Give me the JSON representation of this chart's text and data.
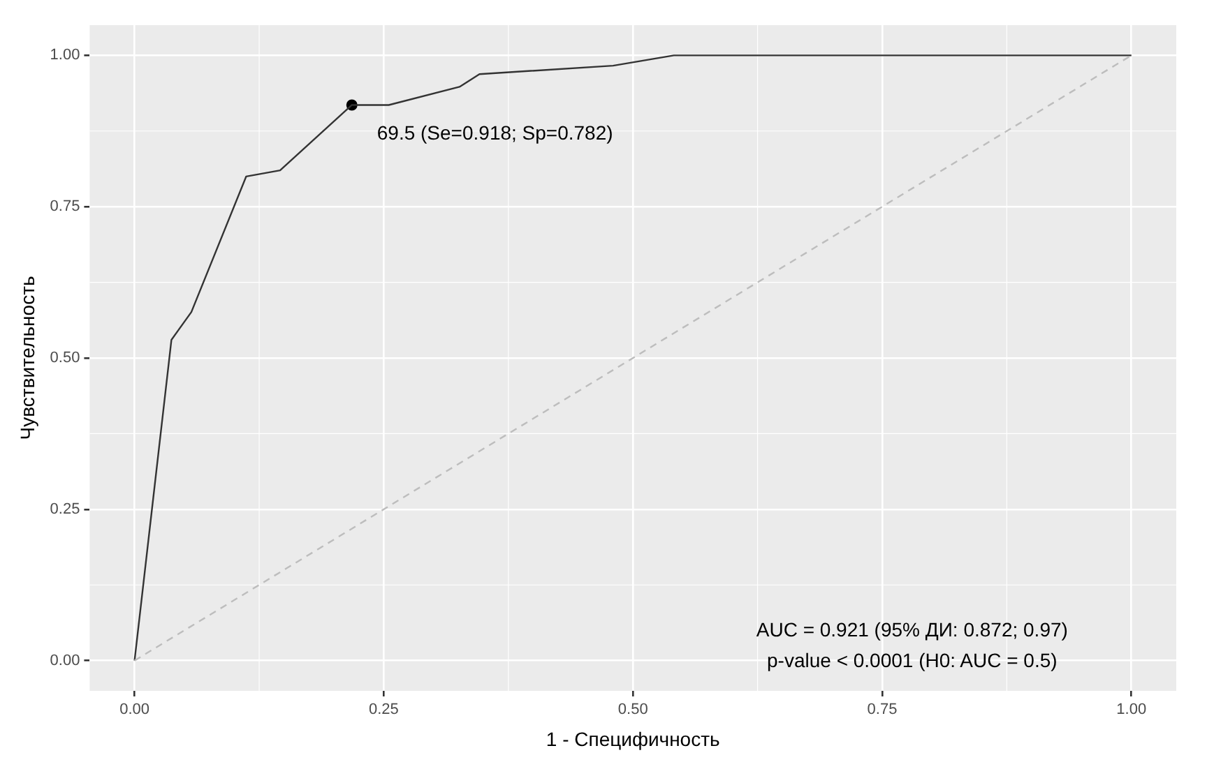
{
  "chart_data": {
    "type": "line",
    "xlabel": "1 - Специфичность",
    "ylabel": "Чувствительность",
    "xlim": [
      -0.045,
      1.045
    ],
    "ylim": [
      -0.05,
      1.05
    ],
    "xticks": [
      {
        "value": 0,
        "label": "0.00"
      },
      {
        "value": 0.25,
        "label": "0.25"
      },
      {
        "value": 0.5,
        "label": "0.50"
      },
      {
        "value": 0.75,
        "label": "0.75"
      },
      {
        "value": 1,
        "label": "1.00"
      }
    ],
    "yticks": [
      {
        "value": 0,
        "label": "0.00"
      },
      {
        "value": 0.25,
        "label": "0.25"
      },
      {
        "value": 0.5,
        "label": "0.50"
      },
      {
        "value": 0.75,
        "label": "0.75"
      },
      {
        "value": 1,
        "label": "1.00"
      }
    ],
    "grid": true,
    "legend": false,
    "series": [
      {
        "type": "line",
        "color": "#bdbdbd",
        "line_style": "dashed",
        "marker": "none",
        "x": [
          0,
          1
        ],
        "values": [
          0,
          1
        ]
      },
      {
        "type": "line",
        "color": "#333333",
        "line_style": "solid",
        "marker": "none",
        "x": [
          0,
          0.037,
          0.057,
          0.112,
          0.146,
          0.218,
          0.255,
          0.326,
          0.346,
          0.48,
          0.541,
          1
        ],
        "values": [
          0,
          0.53,
          0.576,
          0.8,
          0.81,
          0.918,
          0.918,
          0.948,
          0.969,
          0.983,
          1,
          1
        ]
      },
      {
        "type": "scatter",
        "color": "#000000",
        "marker": "circle",
        "x": [
          0.218
        ],
        "values": [
          0.918
        ]
      }
    ],
    "annotations": [
      {
        "text": "69.5 (Se=0.918; Sp=0.782)",
        "x": 0.218,
        "y": 0.918
      },
      "AUC = 0.921 (95% ДИ: 0.872; 0.97)",
      "p-value < 0.0001 (H0: AUC = 0.5)"
    ]
  }
}
